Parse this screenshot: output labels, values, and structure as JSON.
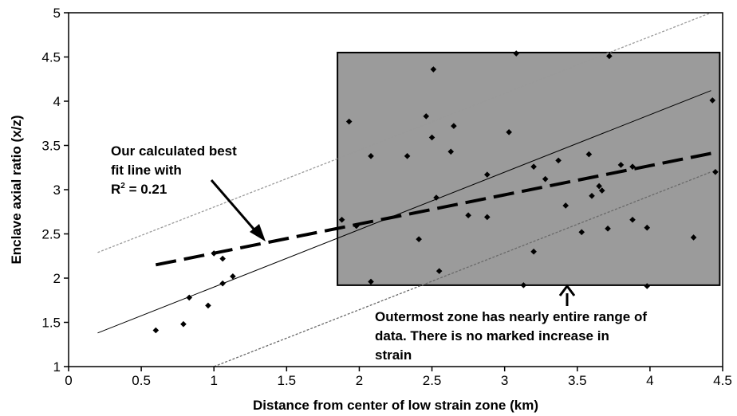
{
  "chart_data": {
    "type": "scatter",
    "xlabel": "Distance from center of low strain zone (km)",
    "ylabel": "Enclave axial ratio (x/z)",
    "xlim": [
      0,
      4.5
    ],
    "ylim": [
      1,
      5
    ],
    "xticks": [
      "0",
      "0.5",
      "1",
      "1.5",
      "2",
      "2.5",
      "3",
      "3.5",
      "4",
      "4.5"
    ],
    "yticks": [
      "1",
      "1.5",
      "2",
      "2.5",
      "3",
      "3.5",
      "4",
      "4.5",
      "5"
    ],
    "grid": false,
    "points": [
      [
        0.6,
        1.41
      ],
      [
        0.79,
        1.48
      ],
      [
        0.83,
        1.78
      ],
      [
        0.96,
        1.69
      ],
      [
        1.0,
        2.28
      ],
      [
        1.06,
        2.22
      ],
      [
        1.06,
        1.94
      ],
      [
        1.13,
        2.02
      ],
      [
        1.88,
        2.66
      ],
      [
        1.93,
        3.77
      ],
      [
        1.98,
        2.59
      ],
      [
        2.08,
        3.38
      ],
      [
        2.08,
        1.96
      ],
      [
        2.33,
        3.38
      ],
      [
        2.41,
        2.44
      ],
      [
        2.46,
        3.83
      ],
      [
        2.5,
        3.59
      ],
      [
        2.51,
        4.36
      ],
      [
        2.53,
        2.91
      ],
      [
        2.55,
        2.08
      ],
      [
        2.63,
        3.43
      ],
      [
        2.65,
        3.72
      ],
      [
        2.75,
        2.71
      ],
      [
        2.88,
        3.17
      ],
      [
        2.88,
        2.69
      ],
      [
        3.03,
        3.65
      ],
      [
        3.08,
        4.54
      ],
      [
        3.13,
        1.92
      ],
      [
        3.2,
        3.26
      ],
      [
        3.2,
        2.3
      ],
      [
        3.28,
        3.12
      ],
      [
        3.37,
        3.33
      ],
      [
        3.42,
        2.82
      ],
      [
        3.53,
        2.52
      ],
      [
        3.58,
        3.4
      ],
      [
        3.6,
        2.93
      ],
      [
        3.65,
        3.04
      ],
      [
        3.67,
        2.99
      ],
      [
        3.71,
        2.56
      ],
      [
        3.72,
        4.51
      ],
      [
        3.8,
        3.28
      ],
      [
        3.88,
        3.26
      ],
      [
        3.88,
        2.66
      ],
      [
        3.98,
        2.57
      ],
      [
        3.98,
        1.91
      ],
      [
        4.3,
        2.46
      ],
      [
        4.43,
        4.01
      ],
      [
        4.45,
        3.2
      ]
    ],
    "solid_fit_line": [
      [
        0.2,
        1.38
      ],
      [
        4.42,
        4.12
      ]
    ],
    "dashed_fit_line": [
      [
        0.6,
        2.15
      ],
      [
        4.42,
        3.41
      ]
    ],
    "upper_dotted_line": [
      [
        0.2,
        2.29
      ],
      [
        4.42,
        5.0
      ]
    ],
    "lower_dotted_line": [
      [
        1.0,
        1.0
      ],
      [
        4.42,
        3.2
      ]
    ],
    "shaded_zone": {
      "x": [
        1.85,
        4.48
      ],
      "y": [
        1.92,
        4.55
      ]
    },
    "annotations": {
      "fit_line_lines": [
        "Our calculated best",
        "fit line with"
      ],
      "r2_prefix": "R",
      "r2_exp": "2",
      "r2_value": " = 0.21",
      "zone_lines": [
        "Outermost zone has nearly entire range of",
        "data.  There is no marked increase in",
        "strain"
      ]
    }
  }
}
